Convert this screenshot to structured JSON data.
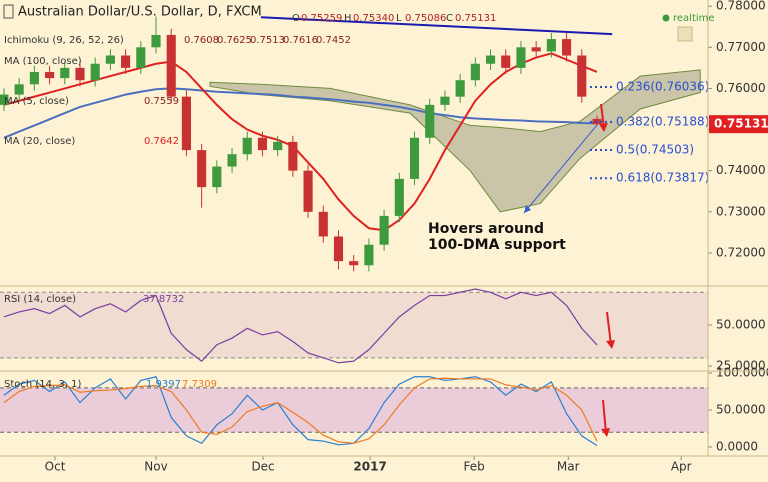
{
  "chart_data": {
    "type": "candlestick",
    "title": "Australian Dollar/U.S. Dollar, D, FXCM",
    "status": "realtime",
    "ohlc_names": [
      "O",
      "H",
      "L",
      "C"
    ],
    "ohlc_labels": [
      "0.75259",
      "0.75340",
      "0.75086",
      "0.75131"
    ],
    "open": [
      0.756,
      0.7585,
      0.761,
      0.764,
      0.7625,
      0.765,
      0.762,
      0.766,
      0.768,
      0.765,
      0.77,
      0.773,
      0.758,
      0.745,
      0.736,
      0.741,
      0.744,
      0.748,
      0.745,
      0.747,
      0.74,
      0.73,
      0.724,
      0.718,
      0.717,
      0.722,
      0.729,
      0.738,
      0.748,
      0.756,
      0.758,
      0.762,
      0.766,
      0.768,
      0.765,
      0.77,
      0.769,
      0.772,
      0.768,
      0.75259
    ],
    "high": [
      0.76,
      0.7625,
      0.7655,
      0.7655,
      0.7665,
      0.7665,
      0.7675,
      0.7695,
      0.7695,
      0.7715,
      0.7775,
      0.7745,
      0.7595,
      0.7465,
      0.7425,
      0.7455,
      0.7495,
      0.7495,
      0.7485,
      0.7485,
      0.7415,
      0.7315,
      0.7255,
      0.7195,
      0.7235,
      0.7305,
      0.7395,
      0.7495,
      0.7575,
      0.7595,
      0.7635,
      0.7675,
      0.7695,
      0.7695,
      0.7715,
      0.7715,
      0.7735,
      0.7735,
      0.7695,
      0.7534
    ],
    "low": [
      0.7545,
      0.757,
      0.7595,
      0.761,
      0.761,
      0.7605,
      0.7605,
      0.7645,
      0.7635,
      0.7635,
      0.7685,
      0.7565,
      0.7435,
      0.731,
      0.7345,
      0.7395,
      0.7425,
      0.7435,
      0.7435,
      0.7385,
      0.7285,
      0.7225,
      0.716,
      0.7155,
      0.7155,
      0.7205,
      0.7275,
      0.7365,
      0.7465,
      0.7545,
      0.7565,
      0.7605,
      0.7645,
      0.7635,
      0.7635,
      0.7675,
      0.7675,
      0.7665,
      0.7565,
      0.75086
    ],
    "close": [
      0.7585,
      0.761,
      0.764,
      0.7625,
      0.765,
      0.762,
      0.766,
      0.768,
      0.765,
      0.77,
      0.773,
      0.758,
      0.745,
      0.736,
      0.741,
      0.744,
      0.748,
      0.745,
      0.747,
      0.74,
      0.73,
      0.724,
      0.718,
      0.717,
      0.722,
      0.729,
      0.738,
      0.748,
      0.756,
      0.758,
      0.762,
      0.766,
      0.768,
      0.765,
      0.77,
      0.769,
      0.772,
      0.768,
      0.758,
      0.75131
    ],
    "up_color": "#3d9a3d",
    "down_color": "#c83232",
    "xlim": [
      -0.26,
      46.3
    ],
    "xticks": [
      {
        "value": 3.36,
        "label": "Oct"
      },
      {
        "value": 10.0,
        "label": "Nov"
      },
      {
        "value": 17.04,
        "label": "Dec"
      },
      {
        "value": 24.08,
        "label": "2017"
      },
      {
        "value": 30.92,
        "label": "Feb"
      },
      {
        "value": 37.11,
        "label": "Mar"
      },
      {
        "value": 44.54,
        "label": "Apr"
      }
    ],
    "ylim": [
      0.7122,
      0.7815
    ],
    "yticks": [
      {
        "value": 0.78,
        "label": "0.78000"
      },
      {
        "value": 0.77,
        "label": "0.77000"
      },
      {
        "value": 0.76,
        "label": "0.76000"
      },
      {
        "value": 0.75,
        "label": "0.75000"
      },
      {
        "value": 0.74,
        "label": "0.74000"
      },
      {
        "value": 0.73,
        "label": "0.73000"
      },
      {
        "value": 0.72,
        "label": "0.72000"
      }
    ],
    "indicators": [
      {
        "name": "Ichimoku (9, 26, 52, 26)",
        "values": [
          0.7608,
          0.7625,
          0.7513,
          0.7616,
          0.7452
        ]
      },
      {
        "name": "MA (100, close)",
        "color": "#4a6fbf",
        "series": [
          0.748,
          0.7495,
          0.751,
          0.7525,
          0.754,
          0.7555,
          0.7565,
          0.7575,
          0.7585,
          0.7592,
          0.7598,
          0.76,
          0.7598,
          0.7595,
          0.7592,
          0.759,
          0.7588,
          0.7586,
          0.7584,
          0.758,
          0.7578,
          0.7575,
          0.7572,
          0.7568,
          0.7565,
          0.756,
          0.7555,
          0.7548,
          0.754,
          0.7535,
          0.753,
          0.7527,
          0.7525,
          0.7523,
          0.7522,
          0.752,
          0.7519,
          0.7518,
          0.7516,
          0.7515
        ]
      },
      {
        "name": "MA (5, close)",
        "values": [
          0.7559
        ]
      },
      {
        "name": "MA (20, close)",
        "color": "#e02020",
        "values": [
          0.7642
        ],
        "series": [
          0.756,
          0.757,
          0.758,
          0.759,
          0.76,
          0.761,
          0.762,
          0.763,
          0.764,
          0.765,
          0.766,
          0.7665,
          0.764,
          0.76,
          0.756,
          0.7525,
          0.75,
          0.7485,
          0.7475,
          0.746,
          0.742,
          0.738,
          0.733,
          0.729,
          0.726,
          0.7255,
          0.728,
          0.732,
          0.738,
          0.745,
          0.751,
          0.757,
          0.761,
          0.764,
          0.766,
          0.7675,
          0.7685,
          0.767,
          0.7655,
          0.764
        ]
      }
    ],
    "cloud": {
      "color": "#b8b59a",
      "x": [
        13.55,
        16.84,
        21.45,
        26.71,
        30.66,
        32.63,
        35.26,
        37.89,
        41.84,
        45.79
      ],
      "upper": [
        0.7615,
        0.761,
        0.76,
        0.756,
        0.751,
        0.7505,
        0.7495,
        0.752,
        0.763,
        0.7645
      ],
      "lower": [
        0.7605,
        0.7585,
        0.757,
        0.754,
        0.74,
        0.73,
        0.732,
        0.743,
        0.755,
        0.759
      ]
    },
    "trendline": {
      "color": "#1a1ab0",
      "x": [
        16.9,
        40.0
      ],
      "y": [
        0.7773,
        0.7732
      ]
    },
    "fib_levels": [
      {
        "value": 0.76036,
        "label": "0.236(0.76036)"
      },
      {
        "value": 0.75188,
        "label": "0.382(0.75188)"
      },
      {
        "value": 0.74503,
        "label": "0.5(0.74503)"
      },
      {
        "value": 0.73817,
        "label": "0.618(0.73817)"
      }
    ],
    "annotation": [
      "Hovers around",
      "100-DMA support"
    ],
    "rsi": {
      "name": "RSI (14, close)",
      "color": "#7a3fa0",
      "ylim": [
        22.6,
        72.6
      ],
      "yticks": [
        {
          "value": 50,
          "label": "50.0000"
        },
        {
          "value": 25,
          "label": "25.0000"
        }
      ],
      "band": [
        30,
        70
      ],
      "values": [
        55,
        58,
        60,
        57,
        62,
        55,
        60,
        63,
        58,
        65,
        68,
        45,
        35,
        28,
        38,
        42,
        48,
        44,
        46,
        40,
        33,
        30,
        27,
        28,
        35,
        45,
        55,
        62,
        68,
        68,
        70,
        72,
        70,
        66,
        70,
        68,
        70,
        62,
        48,
        37.8732
      ]
    },
    "stoch": {
      "name": "Stoch (14, 3, 1)",
      "ylim": [
        -10.8,
        101.4
      ],
      "yticks": [
        {
          "value": 100,
          "label": "100.0000"
        },
        {
          "value": 50,
          "label": "50.0000"
        },
        {
          "value": 0,
          "label": "0.0000"
        }
      ],
      "band": [
        20,
        80
      ],
      "series": [
        {
          "color": "#2a7fd4",
          "values": [
            70,
            85,
            90,
            75,
            88,
            60,
            80,
            92,
            65,
            90,
            95,
            40,
            15,
            5,
            30,
            45,
            70,
            50,
            60,
            30,
            10,
            8,
            3,
            5,
            25,
            60,
            85,
            95,
            95,
            90,
            92,
            95,
            88,
            70,
            85,
            75,
            88,
            45,
            15,
            1.9397
          ]
        },
        {
          "color": "#f07a20",
          "values": [
            60,
            75,
            82,
            83,
            84,
            74,
            76,
            77,
            79,
            82,
            83,
            75,
            50,
            20,
            17,
            27,
            48,
            55,
            60,
            47,
            33,
            16,
            7,
            5,
            11,
            30,
            57,
            80,
            92,
            93,
            92,
            92,
            92,
            84,
            81,
            77,
            83,
            70,
            50,
            7.7309
          ]
        }
      ]
    }
  }
}
